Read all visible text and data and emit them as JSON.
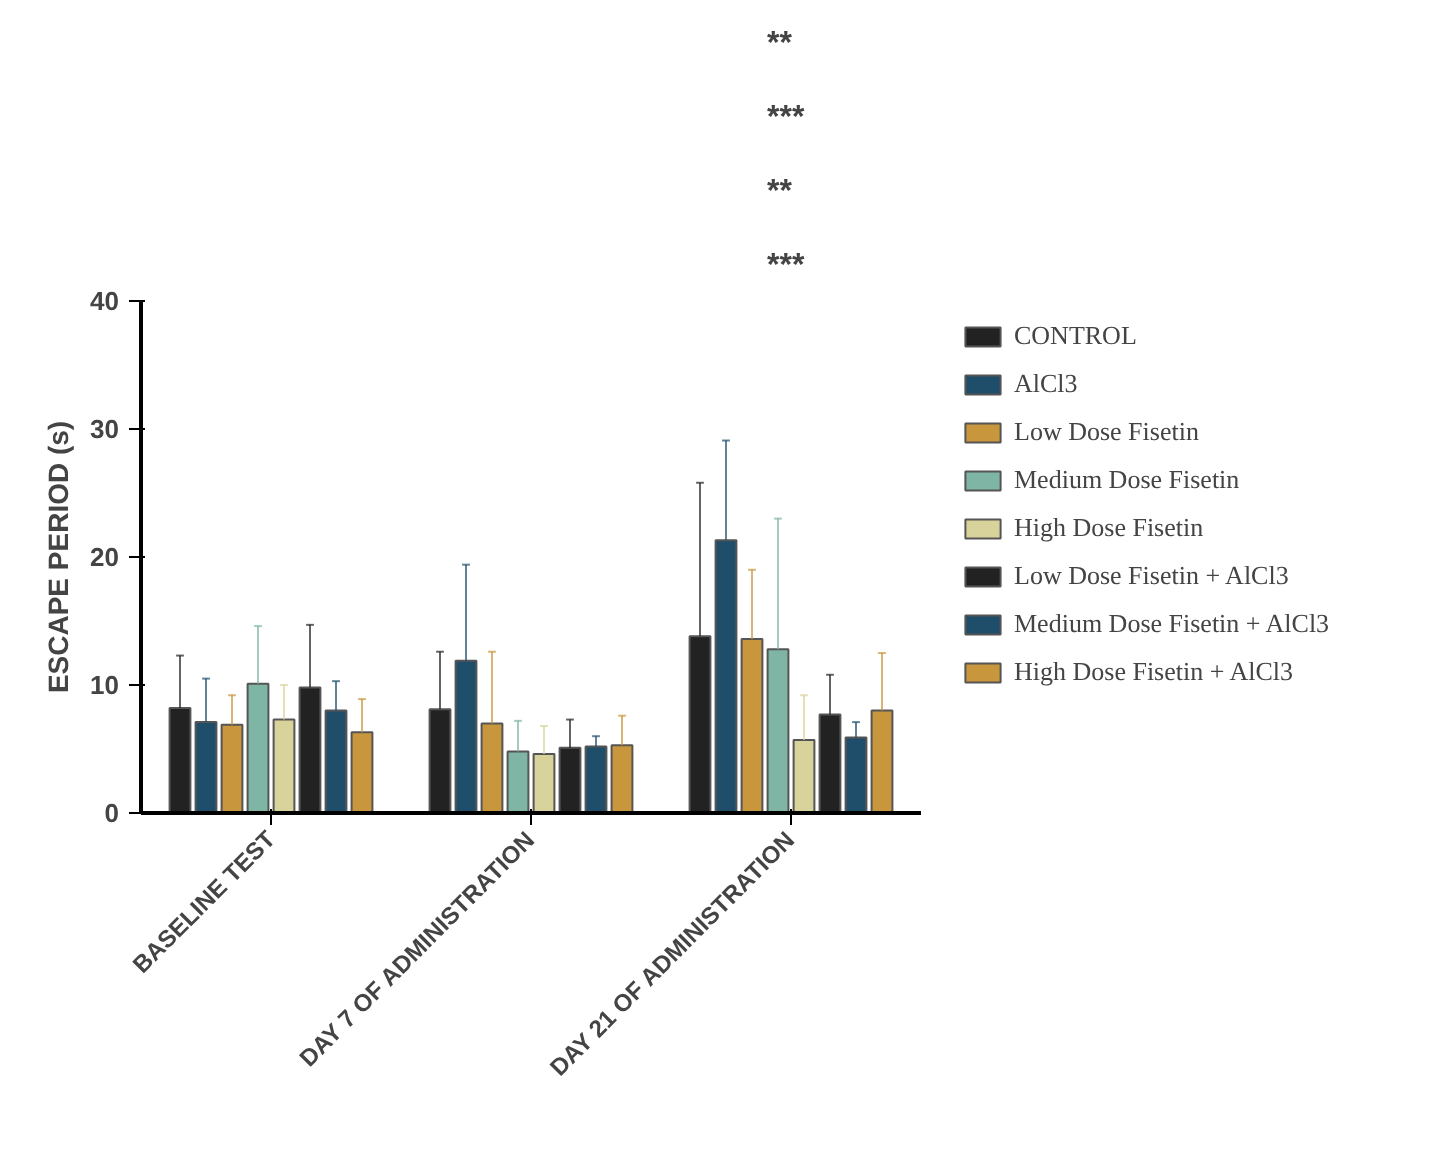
{
  "chart_data": {
    "type": "bar",
    "ylabel": "ESCAPE PERIOD (s)",
    "categories": [
      "BASELINE TEST",
      "DAY 7 OF ADMINISTRATION",
      "DAY 21 OF ADMINISTRATION"
    ],
    "ylim": [
      0,
      40
    ],
    "yticks": [
      0,
      10,
      20,
      30,
      40
    ],
    "grid": false,
    "legend": "right",
    "series": [
      {
        "name": "CONTROL",
        "color": "#222222",
        "values": [
          8.2,
          8.1,
          13.8
        ],
        "errors": [
          [
            8.2,
            12.3
          ],
          [
            8.1,
            12.6
          ],
          [
            13.8,
            25.8
          ]
        ]
      },
      {
        "name": "AlCl3",
        "color": "#1f4e6b",
        "values": [
          7.1,
          11.9,
          21.3
        ],
        "errors": [
          [
            7.1,
            10.5
          ],
          [
            11.9,
            19.4
          ],
          [
            21.3,
            29.1
          ]
        ]
      },
      {
        "name": "Low Dose Fisetin",
        "color": "#c8963c",
        "values": [
          6.9,
          7.0,
          13.6
        ],
        "errors": [
          [
            6.9,
            9.2
          ],
          [
            7.0,
            12.6
          ],
          [
            13.6,
            19.0
          ]
        ]
      },
      {
        "name": "Medium Dose Fisetin",
        "color": "#7fb5a5",
        "values": [
          10.1,
          4.8,
          12.8
        ],
        "errors": [
          [
            10.1,
            14.6
          ],
          [
            4.8,
            7.2
          ],
          [
            12.8,
            23.0
          ]
        ]
      },
      {
        "name": "High Dose Fisetin",
        "color": "#d8d39a",
        "values": [
          7.3,
          4.6,
          5.7
        ],
        "errors": [
          [
            7.3,
            10.0
          ],
          [
            4.6,
            6.8
          ],
          [
            5.7,
            9.2
          ]
        ]
      },
      {
        "name": "Low Dose Fisetin + AlCl3",
        "color": "#222222",
        "values": [
          9.8,
          5.1,
          7.7
        ],
        "errors": [
          [
            9.8,
            14.7
          ],
          [
            5.1,
            7.3
          ],
          [
            7.7,
            10.8
          ]
        ]
      },
      {
        "name": "Medium Dose Fisetin + AlCl3",
        "color": "#1f4e6b",
        "values": [
          8.0,
          5.2,
          5.9
        ],
        "errors": [
          [
            8.0,
            10.3
          ],
          [
            5.2,
            6.0
          ],
          [
            5.9,
            7.1
          ]
        ]
      },
      {
        "name": "High Dose Fisetin + AlCl3",
        "color": "#c8963c",
        "values": [
          6.3,
          5.3,
          8.0
        ],
        "errors": [
          [
            6.3,
            8.9
          ],
          [
            5.3,
            7.6
          ],
          [
            8.0,
            12.5
          ]
        ]
      }
    ],
    "annotations": [
      "**",
      "***",
      "**",
      "***"
    ]
  }
}
